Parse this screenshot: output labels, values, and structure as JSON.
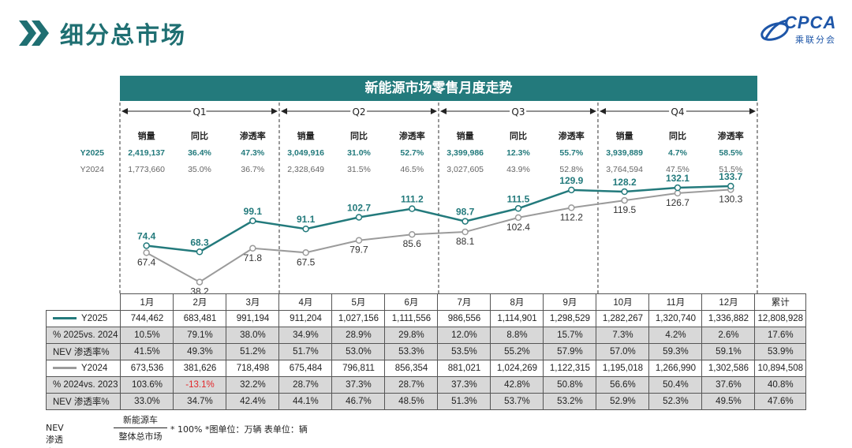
{
  "header": {
    "title": "细分总市场",
    "logo_text": "CPCA",
    "logo_sub": "乘联分会",
    "accent": "#1f6f72"
  },
  "chart_data": {
    "type": "line",
    "title": "新能源市场零售月度走势",
    "quarters": [
      {
        "label": "Q1",
        "Y2025": {
          "sales": "2,419,137",
          "yoy": "36.4%",
          "pen": "47.3%"
        },
        "Y2024": {
          "sales": "1,773,660",
          "yoy": "35.0%",
          "pen": "36.7%"
        }
      },
      {
        "label": "Q2",
        "Y2025": {
          "sales": "3,049,916",
          "yoy": "31.0%",
          "pen": "52.7%"
        },
        "Y2024": {
          "sales": "2,328,649",
          "yoy": "31.5%",
          "pen": "46.5%"
        }
      },
      {
        "label": "Q3",
        "Y2025": {
          "sales": "3,399,986",
          "yoy": "12.3%",
          "pen": "55.7%"
        },
        "Y2024": {
          "sales": "3,027,605",
          "yoy": "43.9%",
          "pen": "52.8%"
        }
      },
      {
        "label": "Q4",
        "Y2025": {
          "sales": "3,939,889",
          "yoy": "4.7%",
          "pen": "58.5%"
        },
        "Y2024": {
          "sales": "3,764,594",
          "yoy": "47.5%",
          "pen": "51.5%"
        }
      }
    ],
    "quarter_columns": [
      "销量",
      "同比",
      "渗透率"
    ],
    "row_labels": [
      "Y2025",
      "Y2024"
    ],
    "categories": [
      "1月",
      "2月",
      "3月",
      "4月",
      "5月",
      "6月",
      "7月",
      "8月",
      "9月",
      "10月",
      "11月",
      "12月"
    ],
    "series": [
      {
        "name": "Y2025",
        "color": "#237a7c",
        "values": [
          74.4,
          68.3,
          99.1,
          91.1,
          102.7,
          111.2,
          98.7,
          111.5,
          129.9,
          128.2,
          132.1,
          133.7
        ]
      },
      {
        "name": "Y2024",
        "color": "#9b9b9b",
        "values": [
          67.4,
          38.2,
          71.8,
          67.5,
          79.7,
          85.6,
          88.1,
          102.4,
          112.2,
          119.5,
          126.7,
          130.3
        ]
      }
    ]
  },
  "table": {
    "total_label": "累计",
    "rows": [
      {
        "label": "Y2025",
        "style": "white",
        "legend_color": "#237a7c",
        "cells": [
          "744,462",
          "683,481",
          "991,194",
          "911,204",
          "1,027,156",
          "1,111,556",
          "986,556",
          "1,114,901",
          "1,298,529",
          "1,282,267",
          "1,320,740",
          "1,336,882",
          "12,808,928"
        ]
      },
      {
        "label": "% 2025vs. 2024",
        "style": "gray",
        "cells": [
          "10.5%",
          "79.1%",
          "38.0%",
          "34.9%",
          "28.9%",
          "29.8%",
          "12.0%",
          "8.8%",
          "15.7%",
          "7.3%",
          "4.2%",
          "2.6%",
          "17.6%"
        ]
      },
      {
        "label": "NEV 渗透率%",
        "style": "gray",
        "cells": [
          "41.5%",
          "49.3%",
          "51.2%",
          "51.7%",
          "53.0%",
          "53.3%",
          "53.5%",
          "55.2%",
          "57.9%",
          "57.0%",
          "59.3%",
          "59.1%",
          "53.9%"
        ]
      },
      {
        "label": "Y2024",
        "style": "white",
        "legend_color": "#9b9b9b",
        "cells": [
          "673,536",
          "381,626",
          "718,498",
          "675,484",
          "796,811",
          "856,354",
          "881,021",
          "1,024,269",
          "1,122,315",
          "1,195,018",
          "1,266,990",
          "1,302,586",
          "10,894,508"
        ]
      },
      {
        "label": "% 2024vs. 2023",
        "style": "gray",
        "negative_index": 1,
        "cells": [
          "103.6%",
          "-13.1%",
          "32.2%",
          "28.7%",
          "37.3%",
          "28.7%",
          "37.3%",
          "42.8%",
          "50.8%",
          "56.6%",
          "50.4%",
          "37.6%",
          "40.8%"
        ]
      },
      {
        "label": "NEV 渗透率%",
        "style": "gray",
        "cells": [
          "33.0%",
          "34.7%",
          "42.4%",
          "44.1%",
          "46.7%",
          "48.5%",
          "51.3%",
          "53.7%",
          "53.2%",
          "52.9%",
          "52.3%",
          "49.5%",
          "47.6%"
        ]
      }
    ]
  },
  "footnote": {
    "lhs": "NEV渗透率 =",
    "numerator": "新能源车",
    "denominator": "整体总市场",
    "rhs": "* 100%   *图单位：万辆    表单位：辆"
  }
}
